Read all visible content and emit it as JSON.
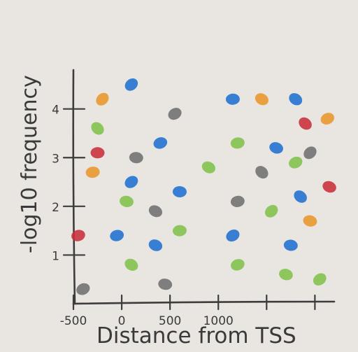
{
  "chart_data": {
    "type": "scatter",
    "title": "",
    "xlabel": "Distance from TSS",
    "ylabel": "-log10 frequency",
    "x_ticks": [
      {
        "value": -500,
        "label": "-500"
      },
      {
        "value": 0,
        "label": "0"
      },
      {
        "value": 500,
        "label": "500"
      },
      {
        "value": 1000,
        "label": "1000"
      },
      {
        "value": 1500,
        "label": ""
      },
      {
        "value": 2000,
        "label": ""
      }
    ],
    "y_ticks": [
      {
        "value": 1,
        "label": "1"
      },
      {
        "value": 2,
        "label": "2"
      },
      {
        "value": 3,
        "label": "3"
      },
      {
        "value": 4,
        "label": "4"
      }
    ],
    "xlim": [
      -500,
      2200
    ],
    "ylim": [
      0,
      4.8
    ],
    "grid": false,
    "legend": "none",
    "colors": {
      "orange": "#e8962a",
      "blue": "#1f6fd0",
      "green": "#7ec24a",
      "red": "#c8303a",
      "gray": "#6f6f6f"
    },
    "points": [
      {
        "x": -200,
        "y": 4.2,
        "color": "orange"
      },
      {
        "x": -300,
        "y": 2.7,
        "color": "orange"
      },
      {
        "x": 1450,
        "y": 4.2,
        "color": "orange"
      },
      {
        "x": 2130,
        "y": 3.8,
        "color": "orange"
      },
      {
        "x": 1950,
        "y": 1.7,
        "color": "orange"
      },
      {
        "x": 100,
        "y": 4.5,
        "color": "blue"
      },
      {
        "x": 1150,
        "y": 4.2,
        "color": "blue"
      },
      {
        "x": 1800,
        "y": 4.2,
        "color": "blue"
      },
      {
        "x": 400,
        "y": 3.3,
        "color": "blue"
      },
      {
        "x": 1600,
        "y": 3.2,
        "color": "blue"
      },
      {
        "x": 100,
        "y": 2.5,
        "color": "blue"
      },
      {
        "x": 600,
        "y": 2.3,
        "color": "blue"
      },
      {
        "x": 1850,
        "y": 2.2,
        "color": "blue"
      },
      {
        "x": -50,
        "y": 1.4,
        "color": "blue"
      },
      {
        "x": 350,
        "y": 1.2,
        "color": "blue"
      },
      {
        "x": 1150,
        "y": 1.4,
        "color": "blue"
      },
      {
        "x": 1750,
        "y": 1.2,
        "color": "blue"
      },
      {
        "x": -250,
        "y": 3.6,
        "color": "green"
      },
      {
        "x": 1200,
        "y": 3.3,
        "color": "green"
      },
      {
        "x": 900,
        "y": 2.8,
        "color": "green"
      },
      {
        "x": 1800,
        "y": 2.9,
        "color": "green"
      },
      {
        "x": 50,
        "y": 2.1,
        "color": "green"
      },
      {
        "x": 1550,
        "y": 1.9,
        "color": "green"
      },
      {
        "x": 600,
        "y": 1.5,
        "color": "green"
      },
      {
        "x": 100,
        "y": 0.8,
        "color": "green"
      },
      {
        "x": 1200,
        "y": 0.8,
        "color": "green"
      },
      {
        "x": 1700,
        "y": 0.6,
        "color": "green"
      },
      {
        "x": 2050,
        "y": 0.5,
        "color": "green"
      },
      {
        "x": -250,
        "y": 3.1,
        "color": "red"
      },
      {
        "x": 1900,
        "y": 3.7,
        "color": "red"
      },
      {
        "x": -450,
        "y": 1.4,
        "color": "red"
      },
      {
        "x": 2150,
        "y": 2.4,
        "color": "red"
      },
      {
        "x": 550,
        "y": 3.9,
        "color": "gray"
      },
      {
        "x": 150,
        "y": 3.0,
        "color": "gray"
      },
      {
        "x": 1450,
        "y": 2.7,
        "color": "gray"
      },
      {
        "x": 1200,
        "y": 2.1,
        "color": "gray"
      },
      {
        "x": 350,
        "y": 1.9,
        "color": "gray"
      },
      {
        "x": -400,
        "y": 0.3,
        "color": "gray"
      },
      {
        "x": 450,
        "y": 0.4,
        "color": "gray"
      },
      {
        "x": 1950,
        "y": 3.1,
        "color": "gray"
      }
    ]
  }
}
